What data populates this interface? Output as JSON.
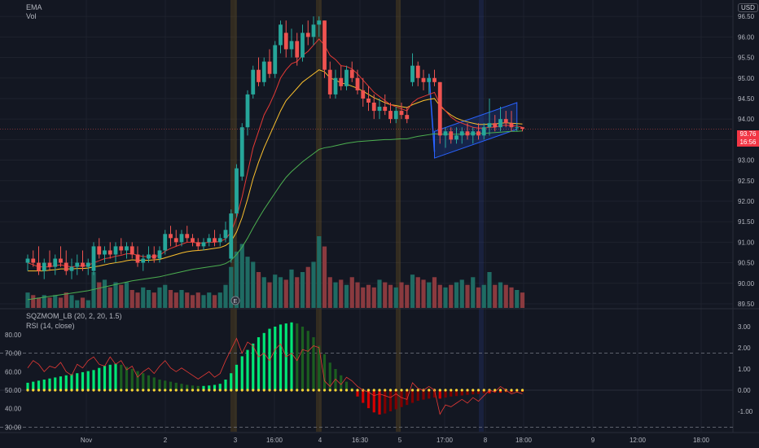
{
  "legend": {
    "ema": "EMA",
    "vol": "Vol",
    "sqzmom": "SQZMOM_LB (20, 2, 20, 1.5)",
    "rsi": "RSI (14, close)"
  },
  "currency_badge": "USD",
  "price_tag": {
    "price": "93.76",
    "countdown": "16:56"
  },
  "earnings_marker": "E",
  "colors": {
    "background": "#131722",
    "up": "#26a69a",
    "down": "#ef5350",
    "ema_fast": "#e53935",
    "ema_mid": "#fbc02d",
    "ema_slow": "#4caf50",
    "volume_up": "#1f6b63",
    "volume_down": "#8a3a3f",
    "rsi": "#e53935",
    "sqz_up_strong": "#00e676",
    "sqz_up_weak": "#1b5e20",
    "sqz_down_strong": "#d50000",
    "sqz_down_weak": "#7f0000",
    "channel": "#2962ff",
    "session_highlight": "#c28a1e",
    "session_highlight_blue": "#2a3f8f"
  },
  "chart_data": {
    "type": "candlestick",
    "price_axis": {
      "ticks": [
        "96.50",
        "96.00",
        "95.50",
        "95.00",
        "94.50",
        "94.00",
        "93.50",
        "93.00",
        "92.50",
        "92.00",
        "91.50",
        "91.00",
        "90.50",
        "90.00",
        "89.50"
      ],
      "range": [
        89.4,
        96.9
      ]
    },
    "time_axis": {
      "labels": [
        "Nov",
        "2",
        "3",
        "16:00",
        "4",
        "16:30",
        "5",
        "17:00",
        "8",
        "18:00",
        "9",
        "12:00",
        "18:00"
      ]
    },
    "candles": {
      "fields": [
        "open",
        "high",
        "low",
        "close"
      ],
      "values": [
        [
          90.5,
          90.7,
          90.3,
          90.6
        ],
        [
          90.6,
          90.8,
          90.4,
          90.5
        ],
        [
          90.5,
          90.9,
          90.2,
          90.3
        ],
        [
          90.3,
          90.6,
          90.1,
          90.5
        ],
        [
          90.5,
          90.8,
          90.3,
          90.4
        ],
        [
          90.4,
          90.7,
          90.2,
          90.6
        ],
        [
          90.6,
          90.9,
          90.4,
          90.5
        ],
        [
          90.5,
          90.8,
          90.2,
          90.3
        ],
        [
          90.3,
          90.6,
          90.1,
          90.4
        ],
        [
          90.4,
          90.7,
          90.2,
          90.5
        ],
        [
          90.5,
          90.8,
          90.3,
          90.4
        ],
        [
          90.4,
          90.6,
          90.2,
          90.5
        ],
        [
          90.3,
          91.0,
          90.2,
          90.9
        ],
        [
          90.9,
          91.1,
          90.6,
          90.7
        ],
        [
          90.7,
          90.9,
          90.5,
          90.8
        ],
        [
          90.8,
          91.0,
          90.6,
          90.7
        ],
        [
          90.7,
          91.0,
          90.5,
          90.9
        ],
        [
          90.9,
          91.1,
          90.7,
          90.8
        ],
        [
          90.8,
          91.0,
          90.6,
          90.9
        ],
        [
          90.9,
          91.0,
          90.6,
          90.7
        ],
        [
          90.7,
          90.9,
          90.4,
          90.5
        ],
        [
          90.5,
          90.7,
          90.3,
          90.6
        ],
        [
          90.6,
          90.9,
          90.5,
          90.7
        ],
        [
          90.7,
          90.9,
          90.5,
          90.6
        ],
        [
          90.6,
          90.9,
          90.5,
          90.8
        ],
        [
          90.8,
          91.3,
          90.7,
          91.2
        ],
        [
          91.2,
          91.4,
          90.9,
          91.1
        ],
        [
          91.1,
          91.3,
          90.9,
          91.0
        ],
        [
          91.0,
          91.3,
          90.9,
          91.2
        ],
        [
          91.2,
          91.4,
          91.0,
          91.1
        ],
        [
          91.1,
          91.2,
          90.9,
          91.0
        ],
        [
          91.0,
          91.1,
          90.8,
          90.9
        ],
        [
          90.9,
          91.1,
          90.8,
          91.0
        ],
        [
          91.0,
          91.2,
          90.9,
          91.1
        ],
        [
          91.1,
          91.3,
          90.9,
          91.0
        ],
        [
          91.0,
          91.2,
          90.9,
          91.1
        ],
        [
          91.1,
          91.5,
          91.0,
          91.3
        ],
        [
          90.6,
          91.8,
          90.5,
          91.7
        ],
        [
          91.7,
          92.9,
          91.6,
          92.8
        ],
        [
          92.6,
          93.9,
          92.5,
          93.8
        ],
        [
          93.8,
          94.7,
          93.6,
          94.6
        ],
        [
          94.6,
          95.3,
          94.5,
          95.2
        ],
        [
          95.2,
          95.5,
          94.8,
          94.9
        ],
        [
          94.9,
          95.5,
          94.8,
          95.4
        ],
        [
          95.4,
          95.7,
          95.0,
          95.1
        ],
        [
          95.1,
          95.9,
          95.0,
          95.8
        ],
        [
          95.8,
          96.4,
          95.6,
          96.3
        ],
        [
          96.1,
          96.4,
          95.5,
          95.7
        ],
        [
          95.7,
          96.2,
          95.5,
          95.9
        ],
        [
          95.9,
          96.1,
          95.3,
          95.5
        ],
        [
          95.5,
          96.3,
          95.4,
          96.1
        ],
        [
          96.1,
          96.4,
          95.8,
          96.0
        ],
        [
          96.0,
          96.5,
          95.8,
          96.3
        ],
        [
          96.3,
          96.5,
          96.0,
          96.4
        ],
        [
          96.4,
          96.4,
          95.0,
          95.2
        ],
        [
          95.2,
          95.4,
          94.5,
          94.6
        ],
        [
          94.6,
          95.2,
          94.5,
          95.0
        ],
        [
          95.0,
          95.3,
          94.7,
          94.8
        ],
        [
          94.8,
          95.3,
          94.7,
          95.2
        ],
        [
          95.2,
          95.4,
          94.9,
          95.0
        ],
        [
          95.0,
          95.2,
          94.6,
          94.7
        ],
        [
          94.7,
          95.0,
          94.3,
          94.5
        ],
        [
          94.5,
          94.8,
          94.2,
          94.4
        ],
        [
          94.4,
          94.6,
          94.0,
          94.2
        ],
        [
          94.2,
          94.5,
          94.0,
          94.3
        ],
        [
          94.3,
          94.6,
          94.1,
          94.2
        ],
        [
          94.2,
          94.4,
          93.9,
          94.0
        ],
        [
          94.0,
          94.3,
          93.9,
          94.2
        ],
        [
          94.2,
          94.4,
          94.0,
          94.1
        ],
        [
          94.1,
          94.3,
          93.9,
          94.0
        ],
        [
          94.9,
          95.6,
          94.8,
          95.3
        ],
        [
          95.3,
          95.4,
          94.8,
          95.0
        ],
        [
          95.0,
          95.2,
          94.7,
          94.9
        ],
        [
          94.9,
          95.1,
          94.6,
          95.0
        ],
        [
          95.0,
          95.2,
          94.8,
          94.9
        ],
        [
          94.9,
          94.9,
          93.4,
          93.6
        ],
        [
          93.6,
          93.8,
          93.3,
          93.7
        ],
        [
          93.7,
          93.8,
          93.4,
          93.5
        ],
        [
          93.5,
          93.8,
          93.4,
          93.6
        ],
        [
          93.6,
          93.8,
          93.4,
          93.7
        ],
        [
          93.7,
          93.9,
          93.5,
          93.6
        ],
        [
          93.6,
          93.8,
          93.4,
          93.7
        ],
        [
          93.7,
          93.9,
          93.5,
          93.6
        ],
        [
          93.6,
          93.9,
          93.5,
          93.8
        ],
        [
          93.8,
          94.5,
          93.6,
          93.9
        ],
        [
          93.9,
          94.1,
          93.7,
          93.8
        ],
        [
          93.8,
          94.3,
          93.7,
          94.0
        ],
        [
          94.0,
          94.2,
          93.8,
          93.9
        ],
        [
          93.9,
          94.2,
          93.7,
          93.8
        ],
        [
          93.8,
          93.9,
          93.7,
          93.8
        ],
        [
          93.8,
          93.8,
          93.7,
          93.76
        ]
      ]
    },
    "ema": {
      "fast": [
        90.5,
        90.45,
        90.4,
        90.4,
        90.4,
        90.43,
        90.45,
        90.42,
        90.4,
        90.42,
        90.42,
        90.44,
        90.5,
        90.55,
        90.6,
        90.62,
        90.66,
        90.68,
        90.72,
        90.72,
        90.68,
        90.65,
        90.65,
        90.65,
        90.68,
        90.78,
        90.85,
        90.9,
        90.95,
        91.0,
        91.0,
        90.98,
        90.98,
        91.0,
        91.0,
        91.02,
        91.08,
        91.25,
        91.6,
        92.1,
        92.7,
        93.3,
        93.7,
        94.1,
        94.35,
        94.65,
        95.0,
        95.2,
        95.35,
        95.4,
        95.55,
        95.65,
        95.8,
        95.95,
        95.8,
        95.55,
        95.45,
        95.3,
        95.28,
        95.22,
        95.1,
        94.95,
        94.8,
        94.65,
        94.55,
        94.45,
        94.35,
        94.3,
        94.25,
        94.2,
        94.4,
        94.5,
        94.55,
        94.6,
        94.65,
        94.35,
        94.2,
        94.05,
        93.95,
        93.9,
        93.85,
        93.8,
        93.78,
        93.78,
        93.8,
        93.8,
        93.84,
        93.85,
        93.84,
        93.83,
        93.8
      ],
      "mid": [
        90.3,
        90.3,
        90.3,
        90.3,
        90.32,
        90.33,
        90.35,
        90.35,
        90.35,
        90.36,
        90.36,
        90.37,
        90.4,
        90.42,
        90.45,
        90.48,
        90.5,
        90.52,
        90.55,
        90.57,
        90.56,
        90.56,
        90.56,
        90.57,
        90.58,
        90.62,
        90.66,
        90.7,
        90.74,
        90.77,
        90.79,
        90.8,
        90.81,
        90.83,
        90.85,
        90.87,
        90.92,
        91.02,
        91.25,
        91.6,
        92.05,
        92.55,
        92.95,
        93.3,
        93.6,
        93.9,
        94.2,
        94.45,
        94.6,
        94.75,
        94.9,
        95.0,
        95.1,
        95.2,
        95.15,
        95.0,
        94.95,
        94.88,
        94.85,
        94.8,
        94.75,
        94.68,
        94.6,
        94.52,
        94.46,
        94.4,
        94.35,
        94.33,
        94.3,
        94.28,
        94.35,
        94.4,
        94.45,
        94.48,
        94.5,
        94.32,
        94.2,
        94.1,
        94.02,
        93.97,
        93.93,
        93.9,
        93.87,
        93.87,
        93.88,
        93.88,
        93.9,
        93.91,
        93.9,
        93.89,
        93.88
      ],
      "slow": [
        89.6,
        89.62,
        89.64,
        89.66,
        89.68,
        89.7,
        89.72,
        89.74,
        89.76,
        89.78,
        89.8,
        89.82,
        89.85,
        89.88,
        89.91,
        89.94,
        89.97,
        90.0,
        90.03,
        90.06,
        90.08,
        90.1,
        90.12,
        90.14,
        90.16,
        90.19,
        90.22,
        90.25,
        90.28,
        90.31,
        90.34,
        90.36,
        90.38,
        90.4,
        90.42,
        90.44,
        90.48,
        90.56,
        90.7,
        90.88,
        91.1,
        91.35,
        91.58,
        91.8,
        92.0,
        92.2,
        92.4,
        92.58,
        92.72,
        92.84,
        92.96,
        93.06,
        93.16,
        93.26,
        93.3,
        93.32,
        93.35,
        93.38,
        93.41,
        93.43,
        93.45,
        93.46,
        93.47,
        93.48,
        93.49,
        93.5,
        93.5,
        93.51,
        93.52,
        93.52,
        93.55,
        93.58,
        93.6,
        93.62,
        93.64,
        93.63,
        93.63,
        93.63,
        93.63,
        93.63,
        93.64,
        93.64,
        93.65,
        93.65,
        93.66,
        93.67,
        93.68,
        93.69,
        93.7,
        93.7,
        93.71
      ]
    },
    "volume": [
      6,
      5,
      4,
      5,
      4,
      5,
      4,
      6,
      5,
      3,
      4,
      3,
      14,
      10,
      11,
      8,
      10,
      9,
      10,
      7,
      6,
      8,
      7,
      6,
      8,
      9,
      7,
      6,
      7,
      6,
      5,
      6,
      5,
      6,
      5,
      6,
      9,
      16,
      22,
      25,
      20,
      18,
      14,
      12,
      10,
      13,
      12,
      11,
      15,
      12,
      14,
      16,
      18,
      28,
      24,
      12,
      10,
      11,
      9,
      12,
      10,
      8,
      9,
      8,
      11,
      10,
      9,
      8,
      10,
      9,
      13,
      12,
      11,
      10,
      12,
      9,
      8,
      9,
      10,
      11,
      9,
      12,
      8,
      9,
      14,
      9,
      10,
      9,
      8,
      7,
      6
    ],
    "rsi": {
      "axis_ticks": [
        "80.00",
        "70.00",
        "60.00",
        "50.00",
        "40.00",
        "30.00"
      ],
      "levels": [
        70,
        30
      ],
      "values": [
        62,
        66,
        64,
        60,
        63,
        62,
        65,
        60,
        58,
        64,
        62,
        66,
        68,
        64,
        63,
        68,
        64,
        66,
        61,
        63,
        57,
        60,
        62,
        59,
        63,
        66,
        62,
        60,
        62,
        60,
        58,
        56,
        58,
        60,
        57,
        59,
        66,
        72,
        78,
        70,
        76,
        74,
        68,
        70,
        66,
        72,
        75,
        68,
        70,
        66,
        72,
        71,
        74,
        73,
        55,
        52,
        56,
        53,
        57,
        55,
        52,
        50,
        49,
        47,
        48,
        47,
        46,
        48,
        46,
        45,
        54,
        51,
        50,
        52,
        50,
        37,
        42,
        41,
        43,
        45,
        43,
        46,
        44,
        47,
        50,
        49,
        52,
        50,
        48,
        49,
        48
      ]
    },
    "squeeze_momentum": {
      "axis_ticks": [
        "3.00",
        "2.00",
        "1.00",
        "0.00",
        "-1.00"
      ],
      "values": [
        0.35,
        0.4,
        0.45,
        0.5,
        0.55,
        0.6,
        0.65,
        0.7,
        0.75,
        0.8,
        0.85,
        0.9,
        0.95,
        1.05,
        1.15,
        1.2,
        1.25,
        1.2,
        1.1,
        1.0,
        0.9,
        0.8,
        0.7,
        0.6,
        0.5,
        0.45,
        0.4,
        0.35,
        0.3,
        0.25,
        0.22,
        0.2,
        0.2,
        0.22,
        0.25,
        0.3,
        0.5,
        0.8,
        1.2,
        1.6,
        1.9,
        2.2,
        2.5,
        2.7,
        2.9,
        3.0,
        3.1,
        3.15,
        3.2,
        3.15,
        3.0,
        2.8,
        2.5,
        2.1,
        1.7,
        1.3,
        1.0,
        0.7,
        0.4,
        0.1,
        -0.3,
        -0.6,
        -0.85,
        -1.05,
        -1.15,
        -1.1,
        -1.0,
        -0.9,
        -0.8,
        -0.7,
        -0.6,
        -0.5,
        -0.45,
        -0.4,
        -0.35,
        -0.4,
        -0.35,
        -0.3,
        -0.28,
        -0.25,
        -0.22,
        -0.2,
        -0.18,
        -0.15,
        -0.15,
        -0.12,
        -0.12,
        -0.1,
        -0.1,
        -0.08,
        -0.08
      ]
    }
  }
}
